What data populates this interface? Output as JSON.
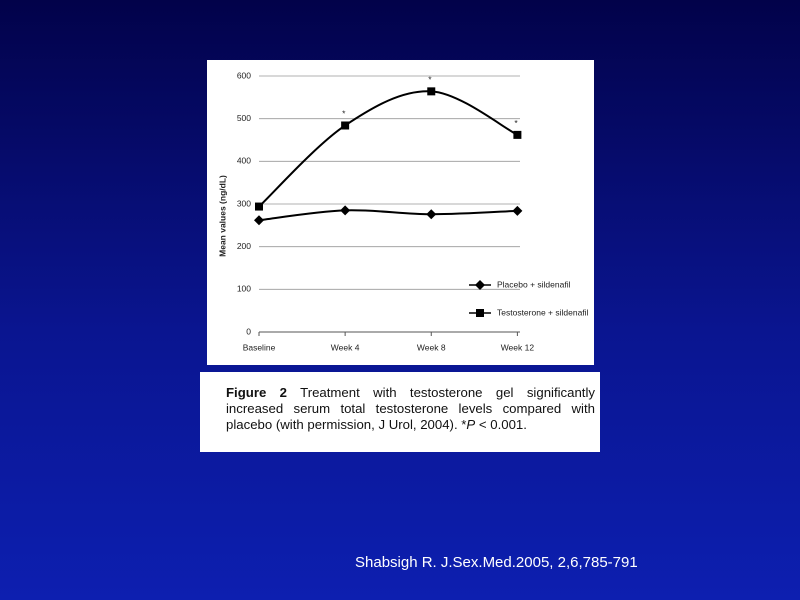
{
  "chart_data": {
    "type": "line",
    "y_label": "Mean values (ng/dL)",
    "categories": [
      "Baseline",
      "Week 4",
      "Week 8",
      "Week 12"
    ],
    "series": [
      {
        "name": "Placebo + sildenafil",
        "color": "#000000",
        "marker": "diamond",
        "values": [
          262,
          285,
          276,
          284
        ]
      },
      {
        "name": "Testosterone + sildenafil",
        "color": "#000000",
        "marker": "square",
        "values": [
          294,
          484,
          564,
          462
        ]
      }
    ],
    "annotations": [
      {
        "text": "*",
        "x": "Week 4"
      },
      {
        "text": "*",
        "x": "Week 8"
      },
      {
        "text": "*",
        "x": "Week 12"
      }
    ],
    "ylim": [
      0,
      600
    ],
    "yticks": [
      0,
      100,
      200,
      300,
      400,
      500,
      600
    ],
    "grid": true,
    "legend": "lower right"
  },
  "caption": {
    "label": "Figure 2",
    "text": "Treatment with testosterone gel significantly increased serum total testosterone levels compared with placebo (with permission, J Urol, 2004). *",
    "italic": "P",
    "after": " < 0.001."
  },
  "footer": "Shabsigh R. J.Sex.Med.2005, 2,6,785-791"
}
